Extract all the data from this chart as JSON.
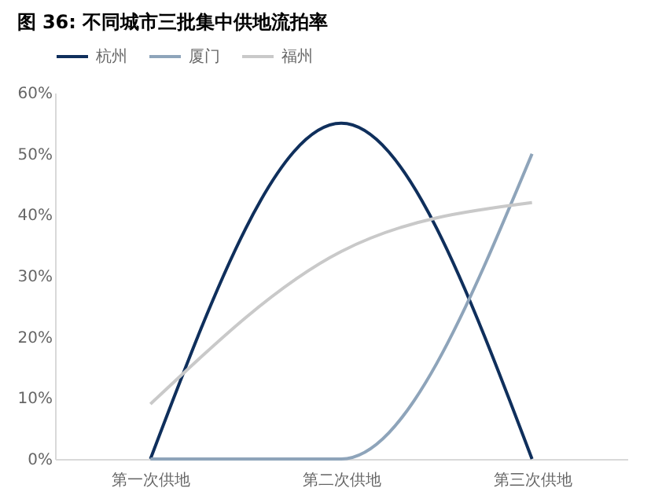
{
  "chart_data": {
    "type": "line",
    "title": "图 36:  不同城市三批集中供地流拍率",
    "categories": [
      "第一次供地",
      "第二次供地",
      "第三次供地"
    ],
    "series": [
      {
        "name": "杭州",
        "color": "#0f2f5c",
        "values": [
          0,
          55,
          0
        ]
      },
      {
        "name": "厦门",
        "color": "#8ea4ba",
        "values": [
          0,
          0,
          50
        ]
      },
      {
        "name": "福州",
        "color": "#c9c9c9",
        "values": [
          9,
          34,
          42
        ]
      }
    ],
    "ylim": [
      0,
      60
    ],
    "yticks": [
      {
        "value": 0,
        "label": "0%"
      },
      {
        "value": 10,
        "label": "10%"
      },
      {
        "value": 20,
        "label": "20%"
      },
      {
        "value": 30,
        "label": "30%"
      },
      {
        "value": 40,
        "label": "40%"
      },
      {
        "value": 50,
        "label": "50%"
      },
      {
        "value": 60,
        "label": "60%"
      }
    ],
    "grid": false,
    "legend": "top",
    "marker": "none",
    "line_style": "solid"
  }
}
